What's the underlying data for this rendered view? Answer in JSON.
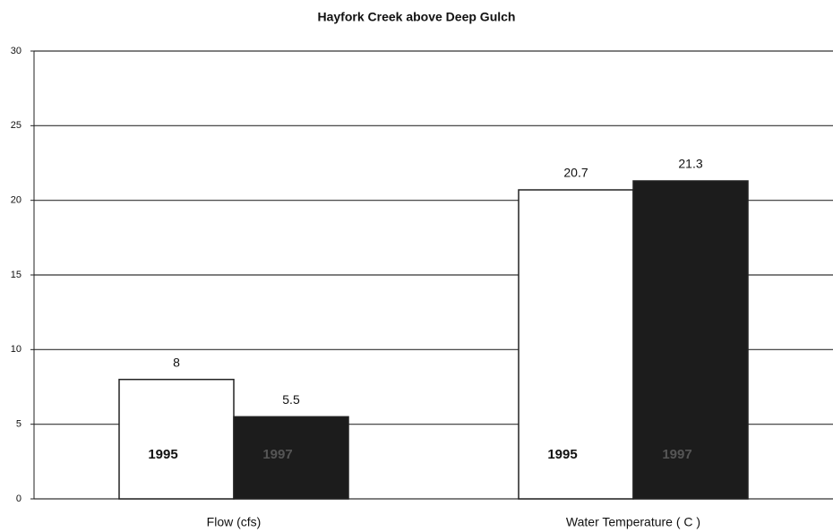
{
  "chart_data": {
    "type": "bar",
    "title": "Hayfork Creek above Deep Gulch",
    "categories": [
      "Flow (cfs)",
      "Water Temperature ( C )"
    ],
    "series": [
      {
        "name": "1995",
        "color": "#ffffff",
        "values": [
          8,
          20.7
        ]
      },
      {
        "name": "1997",
        "color": "#1c1c1c",
        "values": [
          5.5,
          21.3
        ]
      }
    ],
    "ylim": [
      0,
      30
    ],
    "yticks": [
      0,
      5,
      10,
      15,
      20,
      25,
      30
    ],
    "grid": true
  }
}
